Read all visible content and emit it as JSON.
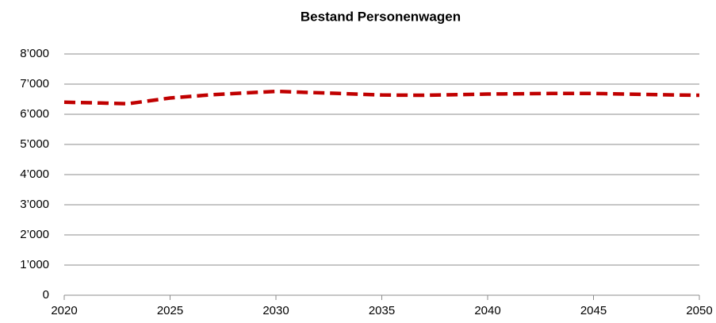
{
  "chart_data": {
    "type": "line",
    "title": "Bestand Personenwagen",
    "x": [
      2020,
      2022,
      2023,
      2025,
      2027,
      2030,
      2033,
      2035,
      2037,
      2040,
      2043,
      2045,
      2048,
      2050
    ],
    "values": [
      6400,
      6370,
      6350,
      6540,
      6650,
      6760,
      6690,
      6640,
      6630,
      6670,
      6690,
      6690,
      6650,
      6630
    ],
    "color": "#c00000",
    "xlim": [
      2020,
      2050
    ],
    "xticks": [
      2020,
      2025,
      2030,
      2035,
      2040,
      2045,
      2050
    ],
    "ylim": [
      0,
      8000
    ],
    "yticks": [
      0,
      {
        "value": 1000,
        "label": "1’000"
      },
      {
        "value": 2000,
        "label": "2’000"
      },
      {
        "value": 3000,
        "label": "3’000"
      },
      {
        "value": 4000,
        "label": "4’000"
      },
      {
        "value": 5000,
        "label": "5’000"
      },
      {
        "value": 6000,
        "label": "6’000"
      },
      {
        "value": 7000,
        "label": "7’000"
      },
      {
        "value": 8000,
        "label": "8’000"
      }
    ],
    "grid": true
  }
}
